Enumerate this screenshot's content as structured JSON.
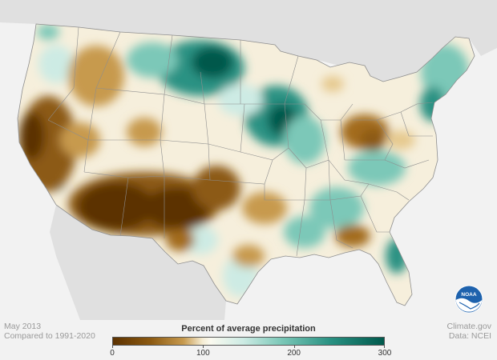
{
  "map": {
    "title": "Percent of average precipitation",
    "period": "May 2013",
    "baseline": "Compared to 1991-2020",
    "credit_site": "Climate.gov",
    "credit_data": "Data: NCEI",
    "logo_text": "NOAA"
  },
  "legend": {
    "ticks": [
      {
        "label": "0",
        "value": 0
      },
      {
        "label": "100",
        "value": 100
      },
      {
        "label": "200",
        "value": 200
      },
      {
        "label": "300",
        "value": 300
      }
    ],
    "min": 0,
    "max": 300,
    "colors": [
      "#5c3200",
      "#8c5a12",
      "#c79a4e",
      "#f0e2bf",
      "#fbfaf0",
      "#cdebe4",
      "#7cc8b8",
      "#2a9283",
      "#00594c"
    ]
  },
  "colors": {
    "land_outside": "#e0e0e0",
    "water": "#f4f4f4",
    "state_border": "#8e8e8e"
  }
}
